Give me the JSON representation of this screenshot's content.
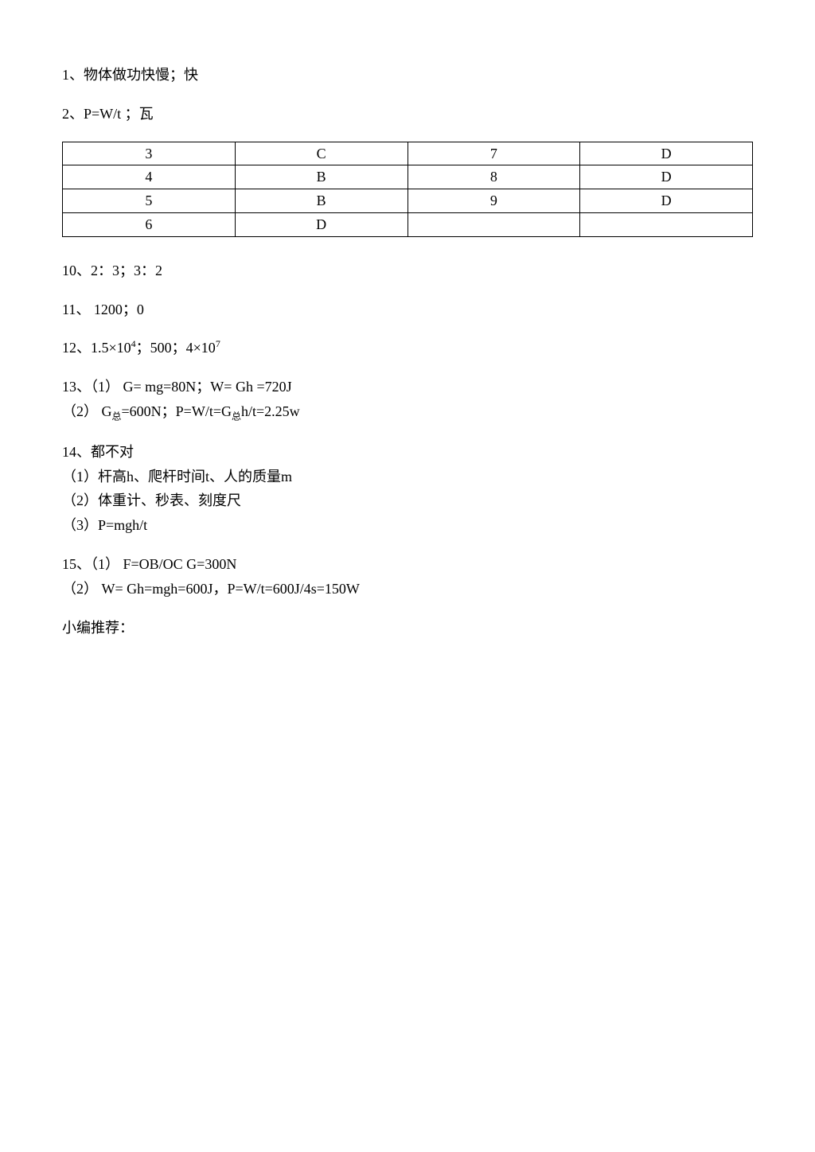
{
  "lines": {
    "l1": "1、物体做功快慢；快",
    "l2": "2、P=W/t ；瓦",
    "l10": "10、2：3；3：2",
    "l11": "11、 1200；0",
    "l12_pre": "12、1.5×10",
    "l12_sup1": "4",
    "l12_mid": "；500；4×10",
    "l12_sup2": "7",
    "l13a": "13、（1） G= mg=80N；W= Gh =720J",
    "l13b_pre": "（2） G",
    "l13b_sub1": "总",
    "l13b_mid": "=600N；P=W/t=G",
    "l13b_sub2": "总",
    "l13b_end": "h/t=2.25w",
    "l14a": "14、都不对",
    "l14b": "（1）杆高h、爬杆时间t、人的质量m",
    "l14c": "（2）体重计、秒表、刻度尺",
    "l14d": "（3）P=mgh/t",
    "l15a": "15、（1） F=OB/OC G=300N",
    "l15b": "（2） W= Gh=mgh=600J，P=W/t=600J/4s=150W",
    "footer": "小编推荐："
  },
  "table": {
    "rows": [
      [
        "3",
        "C",
        "7",
        "D"
      ],
      [
        "4",
        "B",
        "8",
        "D"
      ],
      [
        "5",
        "B",
        "9",
        "D"
      ],
      [
        "6",
        "D",
        "",
        ""
      ]
    ]
  }
}
